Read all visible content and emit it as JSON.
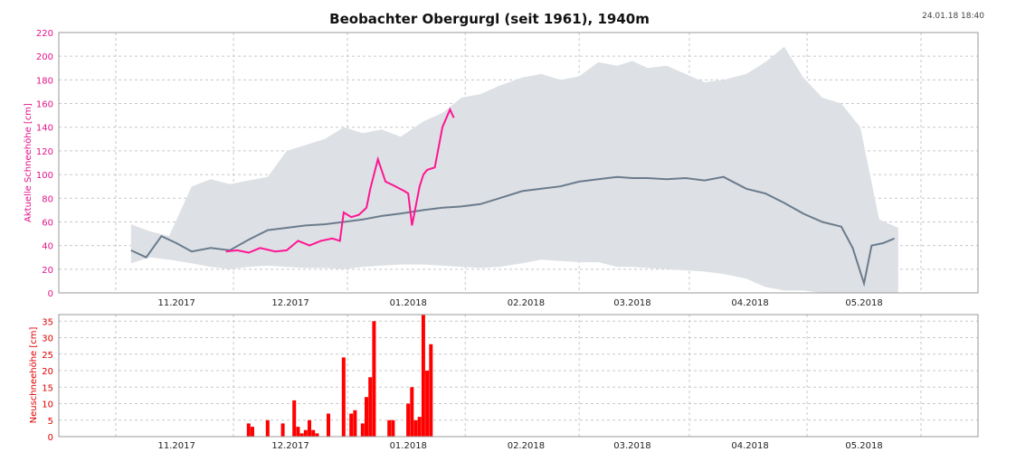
{
  "title": "Beobachter Obergurgl (seit 1961), 1940m",
  "timestamp": "24.01.18 18:40",
  "colors": {
    "current_season": "#ff1493",
    "median": "#6b7b8c",
    "range_band": "#dde1e5",
    "new_snow": "#ff0000",
    "top_ylabel": "#e0158a",
    "bottom_ylabel": "#e00000"
  },
  "chart_data": [
    {
      "type": "line",
      "ylabel": "Aktuelle Schneehöhe [cm]",
      "ylim": [
        0,
        220
      ],
      "yticks": [
        0,
        20,
        40,
        60,
        80,
        100,
        120,
        140,
        160,
        180,
        200,
        220
      ],
      "xlim": [
        "2017-10-01",
        "2018-05-31"
      ],
      "xticks": [
        {
          "date": "2017-11-01",
          "label": "11.2017"
        },
        {
          "date": "2017-12-01",
          "label": "12.2017"
        },
        {
          "date": "2018-01-01",
          "label": "01.2018"
        },
        {
          "date": "2018-02-01",
          "label": "02.2018"
        },
        {
          "date": "2018-03-01",
          "label": "03.2018"
        },
        {
          "date": "2018-04-01",
          "label": "04.2018"
        },
        {
          "date": "2018-05-01",
          "label": "05.2018"
        }
      ],
      "grid": true,
      "series": [
        {
          "role": "range",
          "x": [
            "2017-10-20",
            "2017-10-25",
            "2017-10-30",
            "2017-11-05",
            "2017-11-10",
            "2017-11-15",
            "2017-11-20",
            "2017-11-25",
            "2017-11-30",
            "2017-12-05",
            "2017-12-10",
            "2017-12-15",
            "2017-12-20",
            "2017-12-25",
            "2017-12-30",
            "2018-01-05",
            "2018-01-10",
            "2018-01-15",
            "2018-01-20",
            "2018-01-25",
            "2018-01-31",
            "2018-02-05",
            "2018-02-10",
            "2018-02-15",
            "2018-02-20",
            "2018-02-25",
            "2018-03-01",
            "2018-03-05",
            "2018-03-10",
            "2018-03-15",
            "2018-03-20",
            "2018-03-25",
            "2018-03-31",
            "2018-04-05",
            "2018-04-10",
            "2018-04-15",
            "2018-04-20",
            "2018-04-25",
            "2018-04-30",
            "2018-05-05",
            "2018-05-10"
          ],
          "low": [
            25,
            30,
            28,
            25,
            22,
            20,
            22,
            23,
            22,
            21,
            21,
            20,
            22,
            23,
            24,
            24,
            23,
            22,
            21,
            22,
            25,
            28,
            27,
            26,
            26,
            22,
            22,
            21,
            20,
            19,
            18,
            16,
            12,
            5,
            2,
            2,
            0,
            0,
            0,
            0,
            0
          ],
          "high": [
            58,
            52,
            48,
            90,
            96,
            92,
            95,
            98,
            120,
            125,
            130,
            140,
            135,
            138,
            132,
            145,
            152,
            165,
            168,
            175,
            182,
            185,
            180,
            183,
            195,
            192,
            196,
            190,
            192,
            185,
            178,
            180,
            185,
            195,
            208,
            182,
            165,
            160,
            140,
            62,
            55
          ]
        },
        {
          "role": "median",
          "x": [
            "2017-10-20",
            "2017-10-24",
            "2017-10-28",
            "2017-11-01",
            "2017-11-05",
            "2017-11-10",
            "2017-11-15",
            "2017-11-20",
            "2017-11-25",
            "2017-11-30",
            "2017-12-05",
            "2017-12-10",
            "2017-12-15",
            "2017-12-20",
            "2017-12-25",
            "2017-12-30",
            "2018-01-05",
            "2018-01-10",
            "2018-01-15",
            "2018-01-20",
            "2018-01-25",
            "2018-01-31",
            "2018-02-05",
            "2018-02-10",
            "2018-02-15",
            "2018-02-20",
            "2018-02-25",
            "2018-03-01",
            "2018-03-05",
            "2018-03-10",
            "2018-03-15",
            "2018-03-20",
            "2018-03-25",
            "2018-03-31",
            "2018-04-05",
            "2018-04-10",
            "2018-04-15",
            "2018-04-20",
            "2018-04-25",
            "2018-04-28",
            "2018-05-01",
            "2018-05-03",
            "2018-05-06",
            "2018-05-09"
          ],
          "values": [
            36,
            30,
            48,
            42,
            35,
            38,
            36,
            45,
            53,
            55,
            57,
            58,
            60,
            62,
            65,
            67,
            70,
            72,
            73,
            75,
            80,
            86,
            88,
            90,
            94,
            96,
            98,
            97,
            97,
            96,
            97,
            95,
            98,
            88,
            84,
            76,
            67,
            60,
            56,
            38,
            8,
            40,
            42,
            46
          ]
        },
        {
          "role": "current",
          "x": [
            "2017-11-14",
            "2017-11-17",
            "2017-11-20",
            "2017-11-23",
            "2017-11-27",
            "2017-11-30",
            "2017-12-03",
            "2017-12-06",
            "2017-12-09",
            "2017-12-12",
            "2017-12-14",
            "2017-12-15",
            "2017-12-17",
            "2017-12-19",
            "2017-12-21",
            "2017-12-22",
            "2017-12-24",
            "2017-12-26",
            "2017-12-28",
            "2017-12-31",
            "2018-01-01",
            "2018-01-02",
            "2018-01-04",
            "2018-01-05",
            "2018-01-06",
            "2018-01-08",
            "2018-01-10",
            "2018-01-12",
            "2018-01-13"
          ],
          "values": [
            35,
            36,
            34,
            38,
            35,
            36,
            44,
            40,
            44,
            46,
            44,
            68,
            64,
            66,
            72,
            88,
            113,
            94,
            91,
            86,
            84,
            57,
            90,
            100,
            104,
            106,
            140,
            155,
            148
          ]
        }
      ]
    },
    {
      "type": "bar",
      "ylabel": "Neuschneehöhe [cm]",
      "ylim": [
        0,
        37
      ],
      "yticks": [
        0,
        5,
        10,
        15,
        20,
        25,
        30,
        35
      ],
      "grid": true,
      "x": [
        "2017-11-20",
        "2017-11-21",
        "2017-11-25",
        "2017-11-29",
        "2017-12-02",
        "2017-12-03",
        "2017-12-04",
        "2017-12-05",
        "2017-12-06",
        "2017-12-07",
        "2017-12-08",
        "2017-12-11",
        "2017-12-15",
        "2017-12-17",
        "2017-12-18",
        "2017-12-20",
        "2017-12-21",
        "2017-12-22",
        "2017-12-23",
        "2017-12-27",
        "2017-12-28",
        "2018-01-01",
        "2018-01-02",
        "2018-01-03",
        "2018-01-04",
        "2018-01-05",
        "2018-01-06",
        "2018-01-07",
        "2018-01-08"
      ],
      "values": [
        4,
        3,
        5,
        4,
        11,
        3,
        1,
        2,
        5,
        2,
        1,
        7,
        24,
        7,
        8,
        4,
        12,
        18,
        35,
        5,
        5,
        10,
        15,
        5,
        6,
        37,
        20,
        28,
        0
      ]
    }
  ]
}
